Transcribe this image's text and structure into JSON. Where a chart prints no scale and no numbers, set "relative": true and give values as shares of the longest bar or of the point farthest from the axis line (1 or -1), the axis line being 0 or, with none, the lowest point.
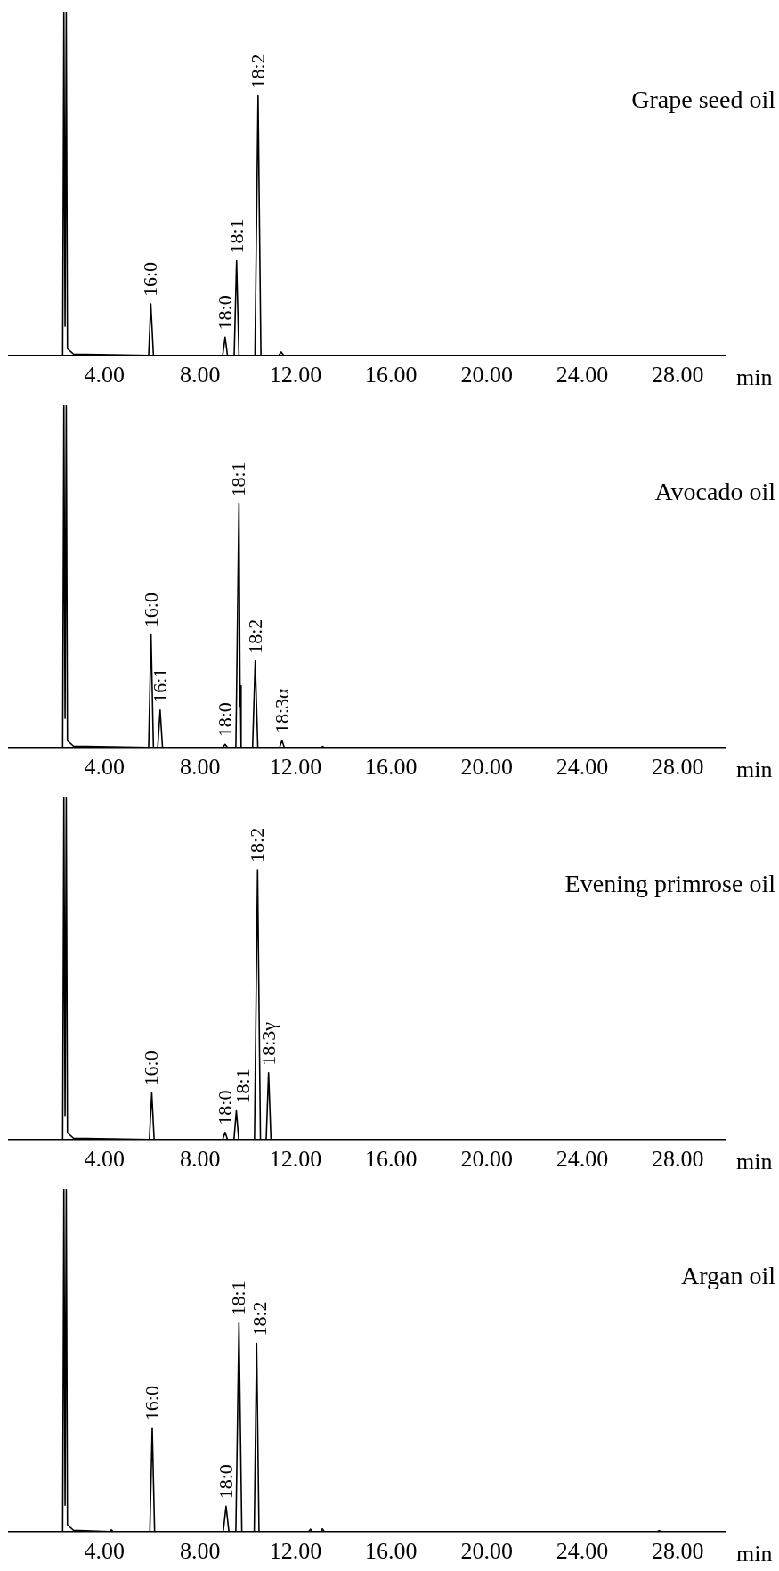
{
  "chart_data": [
    {
      "type": "line",
      "title": "Grape seed oil",
      "xlabel": "min",
      "relative": true,
      "marker": "none",
      "line_style": "solid",
      "xlim": [
        0,
        30
      ],
      "xticks": [
        {
          "value": 4,
          "label": "4.00"
        },
        {
          "value": 8,
          "label": "8.00"
        },
        {
          "value": 12,
          "label": "12.00"
        },
        {
          "value": 16,
          "label": "16.00"
        },
        {
          "value": 20,
          "label": "20.00"
        },
        {
          "value": 24,
          "label": "24.00"
        },
        {
          "value": 28,
          "label": "28.00"
        }
      ],
      "series": [
        {
          "color": "#000000",
          "x": [
            0,
            2.25,
            2.3,
            2.35,
            2.4,
            2.45,
            2.7,
            5.85,
            5.94,
            6.05,
            8.95,
            9.05,
            9.15,
            9.43,
            9.53,
            9.63,
            10.3,
            10.43,
            10.55,
            11.3,
            11.4,
            11.5,
            30
          ],
          "values": [
            0,
            0,
            1,
            0.085,
            1,
            0.02,
            0.004,
            0,
            0.15,
            0,
            0,
            0.053,
            0,
            0,
            0.276,
            0,
            0,
            0.757,
            0,
            0,
            0.01,
            0,
            0
          ]
        }
      ],
      "annotations": [
        {
          "text": "16:0",
          "x": 5.94,
          "y": 0.15
        },
        {
          "text": "18:0",
          "x": 9.05,
          "y": 0.053
        },
        {
          "text": "18:1",
          "x": 9.53,
          "y": 0.276
        },
        {
          "text": "18:2",
          "x": 10.43,
          "y": 0.757
        }
      ]
    },
    {
      "type": "line",
      "title": "Avocado oil",
      "xlabel": "min",
      "relative": true,
      "marker": "none",
      "line_style": "solid",
      "xlim": [
        0,
        30
      ],
      "xticks": [
        {
          "value": 4,
          "label": "4.00"
        },
        {
          "value": 8,
          "label": "8.00"
        },
        {
          "value": 12,
          "label": "12.00"
        },
        {
          "value": 16,
          "label": "16.00"
        },
        {
          "value": 20,
          "label": "20.00"
        },
        {
          "value": 24,
          "label": "24.00"
        },
        {
          "value": 28,
          "label": "28.00"
        }
      ],
      "series": [
        {
          "color": "#000000",
          "x": [
            0,
            2.25,
            2.3,
            2.35,
            2.4,
            2.45,
            2.7,
            5.85,
            5.95,
            6.05,
            6.23,
            6.33,
            6.43,
            8.95,
            9.05,
            9.15,
            9.5,
            9.63,
            9.68,
            9.69,
            9.72,
            10.2,
            10.31,
            10.42,
            11.33,
            11.43,
            11.53,
            13.05,
            13.13,
            13.2,
            30
          ],
          "values": [
            0,
            0,
            1,
            0.085,
            1,
            0.02,
            0.004,
            0,
            0.329,
            0,
            0,
            0.109,
            0,
            0,
            0.009,
            0,
            0,
            0.71,
            0.12,
            0.18,
            0,
            0,
            0.252,
            0,
            0,
            0.02,
            0,
            0,
            0.003,
            0,
            0
          ]
        }
      ],
      "annotations": [
        {
          "text": "16:0",
          "x": 5.95,
          "y": 0.329
        },
        {
          "text": "16:1",
          "x": 6.33,
          "y": 0.109
        },
        {
          "text": "18:0",
          "x": 9.05,
          "y": 0.009
        },
        {
          "text": "18:1",
          "x": 9.63,
          "y": 0.71
        },
        {
          "text": "18:2",
          "x": 10.31,
          "y": 0.252
        },
        {
          "text": "18:3α",
          "x": 11.43,
          "y": 0.02
        }
      ]
    },
    {
      "type": "line",
      "title": "Evening primrose oil",
      "xlabel": "min",
      "relative": true,
      "marker": "none",
      "line_style": "solid",
      "xlim": [
        0,
        30
      ],
      "xticks": [
        {
          "value": 4,
          "label": "4.00"
        },
        {
          "value": 8,
          "label": "8.00"
        },
        {
          "value": 12,
          "label": "12.00"
        },
        {
          "value": 16,
          "label": "16.00"
        },
        {
          "value": 20,
          "label": "20.00"
        },
        {
          "value": 24,
          "label": "24.00"
        },
        {
          "value": 28,
          "label": "28.00"
        }
      ],
      "series": [
        {
          "color": "#000000",
          "x": [
            0,
            2.25,
            2.3,
            2.35,
            2.4,
            2.45,
            2.7,
            5.88,
            5.98,
            6.08,
            8.95,
            9.05,
            9.15,
            9.42,
            9.52,
            9.62,
            10.28,
            10.41,
            10.53,
            10.77,
            10.87,
            10.97,
            30
          ],
          "values": [
            0,
            0,
            1,
            0.07,
            1,
            0.02,
            0.004,
            0,
            0.136,
            0,
            0,
            0.021,
            0,
            0,
            0.084,
            0,
            0,
            0.787,
            0,
            0,
            0.195,
            0,
            0
          ]
        }
      ],
      "annotations": [
        {
          "text": "16:0",
          "x": 5.98,
          "y": 0.136
        },
        {
          "text": "18:0",
          "x": 9.05,
          "y": 0.021
        },
        {
          "text": "18:1",
          "x": 9.52,
          "y": 0.084
        },
        {
          "text": "18:2",
          "x": 10.41,
          "y": 0.787
        },
        {
          "text": "18:3γ",
          "x": 10.87,
          "y": 0.195
        }
      ]
    },
    {
      "type": "line",
      "title": "Argan oil",
      "xlabel": "min",
      "relative": true,
      "marker": "none",
      "line_style": "solid",
      "xlim": [
        0,
        30
      ],
      "xticks": [
        {
          "value": 4,
          "label": "4.00"
        },
        {
          "value": 8,
          "label": "8.00"
        },
        {
          "value": 12,
          "label": "12.00"
        },
        {
          "value": 16,
          "label": "16.00"
        },
        {
          "value": 20,
          "label": "20.00"
        },
        {
          "value": 24,
          "label": "24.00"
        },
        {
          "value": 28,
          "label": "28.00"
        }
      ],
      "series": [
        {
          "color": "#000000",
          "x": [
            0,
            2.25,
            2.3,
            2.35,
            2.4,
            2.45,
            2.7,
            4.22,
            4.29,
            4.36,
            5.9,
            6.0,
            6.1,
            8.97,
            9.09,
            9.21,
            9.5,
            9.63,
            9.75,
            10.27,
            10.37,
            10.47,
            12.55,
            12.62,
            12.7,
            13.05,
            13.12,
            13.2,
            27.15,
            27.22,
            27.3,
            30
          ],
          "values": [
            0,
            0,
            1,
            0.077,
            1,
            0.02,
            0.004,
            0,
            0.005,
            0,
            0,
            0.303,
            0,
            0,
            0.074,
            0,
            0,
            0.609,
            0,
            0,
            0.549,
            0,
            0,
            0.007,
            0,
            0,
            0.008,
            0,
            0,
            0.003,
            0,
            0
          ]
        }
      ],
      "annotations": [
        {
          "text": "16:0",
          "x": 6.0,
          "y": 0.303
        },
        {
          "text": "18:0",
          "x": 9.09,
          "y": 0.074
        },
        {
          "text": "18:1",
          "x": 9.63,
          "y": 0.609
        },
        {
          "text": "18:2",
          "x": 10.37,
          "y": 0.549
        }
      ]
    }
  ]
}
